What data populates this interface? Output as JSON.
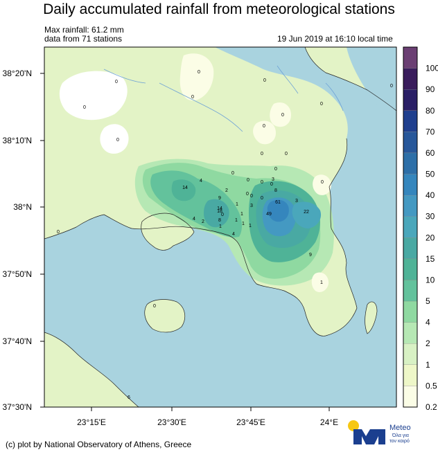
{
  "title": "Daily accumulated rainfall from meteorological stations",
  "max_rainfall": "Max rainfall: 61.2 mm",
  "stations_note": "data from 71 stations",
  "timestamp": "19 Jun 2019 at 16:10 local time",
  "credit": "(c) plot by National Observatory of Athens, Greece",
  "logo": {
    "name": "Meteo",
    "tagline_1": "Όλα για",
    "tagline_2": "τον καιρό"
  },
  "axes": {
    "lat_ticks": [
      "38°20'N",
      "38°10'N",
      "38°N",
      "37°50'N",
      "37°40'N",
      "37°30'N"
    ],
    "lon_ticks": [
      "23°15'E",
      "23°30'E",
      "23°45'E",
      "24°E"
    ]
  },
  "colorbar": {
    "levels": [
      "100",
      "90",
      "80",
      "70",
      "60",
      "50",
      "40",
      "30",
      "20",
      "15",
      "10",
      "5",
      "4",
      "2",
      "1",
      "0.5",
      "0.2"
    ],
    "colors": [
      "#6b3f73",
      "#3a1d5c",
      "#2a1f66",
      "#1f3f8e",
      "#27579a",
      "#2d6fa8",
      "#3586bd",
      "#4499c2",
      "#4aa7bb",
      "#49a9a3",
      "#4fb397",
      "#63c29c",
      "#8fd9a1",
      "#b6e8b4",
      "#d8f1c4",
      "#eef7c8",
      "#fbfde6"
    ]
  },
  "station_labels": [
    {
      "v": "0"
    },
    {
      "v": "0"
    },
    {
      "v": "0"
    },
    {
      "v": "0"
    },
    {
      "v": "0"
    },
    {
      "v": "0"
    },
    {
      "v": "0"
    },
    {
      "v": "0"
    },
    {
      "v": "0"
    },
    {
      "v": "0"
    },
    {
      "v": "0"
    },
    {
      "v": "0"
    },
    {
      "v": "0"
    },
    {
      "v": "0"
    },
    {
      "v": "0"
    },
    {
      "v": "0"
    },
    {
      "v": "0"
    },
    {
      "v": "0"
    },
    {
      "v": "3"
    },
    {
      "v": "8"
    },
    {
      "v": "0"
    },
    {
      "v": "0"
    },
    {
      "v": "4"
    },
    {
      "v": "14"
    },
    {
      "v": "2"
    },
    {
      "v": "9"
    },
    {
      "v": "14"
    },
    {
      "v": "18"
    },
    {
      "v": "1"
    },
    {
      "v": "8"
    },
    {
      "v": "4"
    },
    {
      "v": "3"
    },
    {
      "v": "1"
    },
    {
      "v": "1"
    },
    {
      "v": "4"
    },
    {
      "v": "2"
    },
    {
      "v": "1"
    },
    {
      "v": "1"
    },
    {
      "v": "1"
    },
    {
      "v": "6"
    },
    {
      "v": "61"
    },
    {
      "v": "49"
    },
    {
      "v": "3"
    },
    {
      "v": "22"
    },
    {
      "v": "9"
    },
    {
      "v": "1"
    },
    {
      "v": "0"
    },
    {
      "v": "0"
    },
    {
      "v": "0"
    },
    {
      "v": "0"
    }
  ]
}
